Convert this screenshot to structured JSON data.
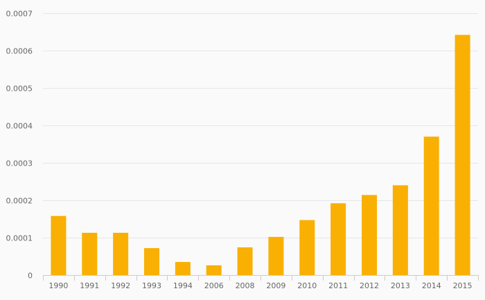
{
  "chart_data": {
    "type": "bar",
    "categories": [
      "1990",
      "1991",
      "1992",
      "1993",
      "1994",
      "2006",
      "2008",
      "2009",
      "2010",
      "2011",
      "2012",
      "2013",
      "2014",
      "2015"
    ],
    "values": [
      0.000158,
      0.000113,
      0.000113,
      7.2e-05,
      3.5e-05,
      2.6e-05,
      7.4e-05,
      0.000102,
      0.000147,
      0.000192,
      0.000214,
      0.00024,
      0.00037,
      0.000642
    ],
    "y_ticks": [
      "0",
      "0.0001",
      "0.0002",
      "0.0003",
      "0.0004",
      "0.0005",
      "0.0006",
      "0.0007"
    ],
    "ylim": [
      0,
      0.0007
    ],
    "grid": true,
    "title": "",
    "xlabel": "",
    "ylabel": "",
    "colors": {
      "bar": "#f9b003",
      "grid": "#e6e6e6",
      "axis": "#cccccc",
      "text": "#666666",
      "background": "#fafafa"
    }
  }
}
